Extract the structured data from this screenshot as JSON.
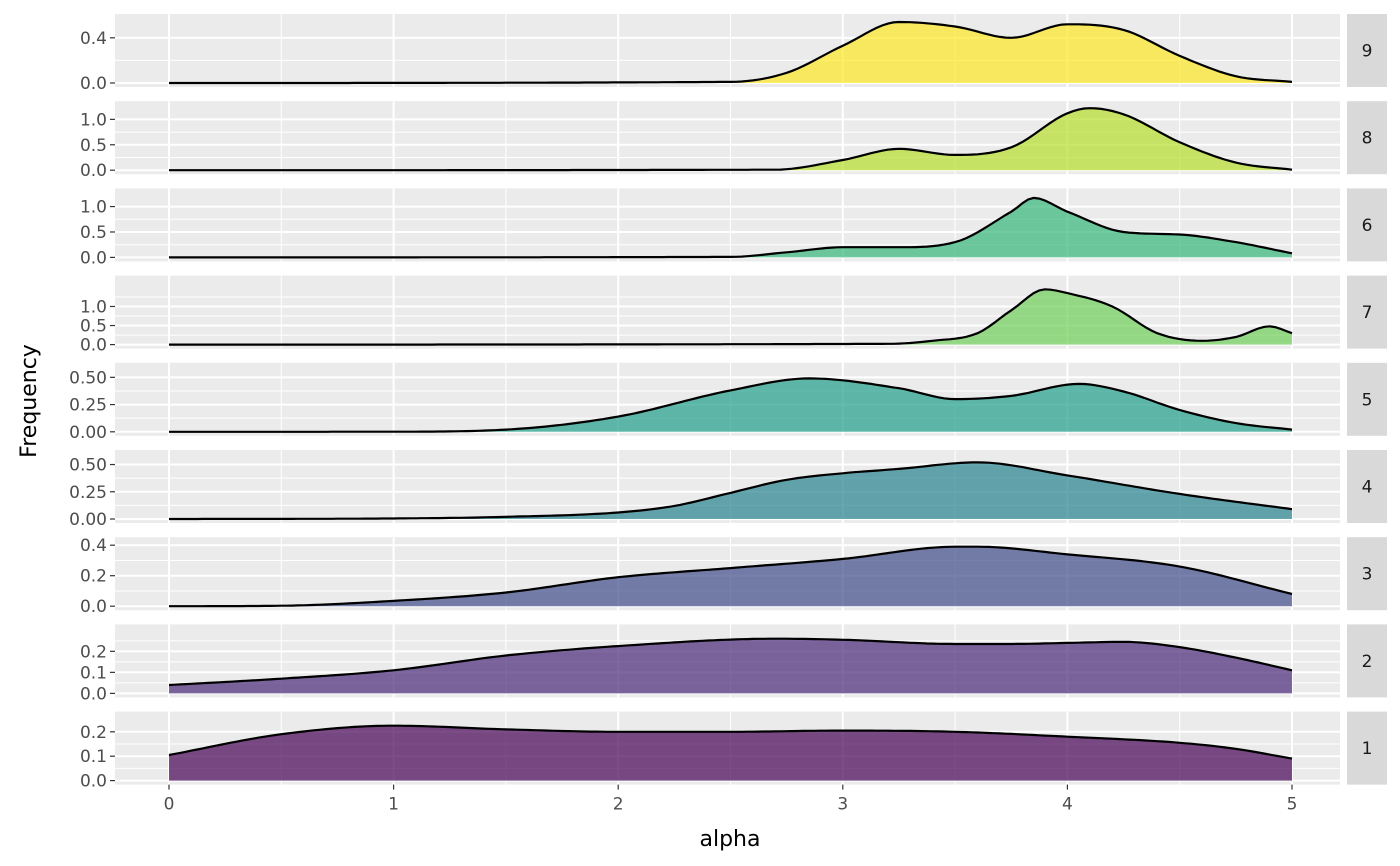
{
  "chart_data": {
    "type": "area",
    "layout": "faceted density ridges, one panel per group, stacked vertically",
    "xlabel": "alpha",
    "ylabel": "Frequency",
    "xlim": [
      0,
      5
    ],
    "x_ticks": [
      "0",
      "1",
      "2",
      "3",
      "4",
      "5"
    ],
    "grid": true,
    "colors": {
      "panel_background": "#ebebeb",
      "grid": "#ffffff",
      "strip_background": "#d9d9d9",
      "outline": "#000000"
    },
    "panels": [
      {
        "label": "9",
        "color": "#fde725",
        "ylim": [
          0,
          0.54
        ],
        "y_ticks": [
          "0.0",
          "0.4"
        ],
        "x": [
          0,
          2.5,
          2.75,
          3.0,
          3.25,
          3.5,
          3.75,
          4.0,
          4.25,
          4.5,
          4.75,
          5.0
        ],
        "values": [
          0,
          0.01,
          0.09,
          0.33,
          0.54,
          0.5,
          0.4,
          0.52,
          0.47,
          0.24,
          0.06,
          0.01
        ]
      },
      {
        "label": "8",
        "color": "#b5de2b",
        "ylim": [
          0,
          1.2
        ],
        "y_ticks": [
          "0.0",
          "0.5",
          "1.0"
        ],
        "x": [
          0,
          2.7,
          3.0,
          3.25,
          3.5,
          3.75,
          4.0,
          4.1,
          4.25,
          4.5,
          4.75,
          5.0
        ],
        "values": [
          0,
          0.01,
          0.2,
          0.42,
          0.3,
          0.45,
          1.12,
          1.22,
          1.1,
          0.55,
          0.15,
          0.01
        ]
      },
      {
        "label": "6",
        "color": "#35b779",
        "ylim": [
          0,
          1.2
        ],
        "y_ticks": [
          "0.0",
          "0.5",
          "1.0"
        ],
        "x": [
          0,
          2.5,
          2.75,
          3.0,
          3.25,
          3.5,
          3.75,
          3.85,
          4.0,
          4.25,
          4.5,
          4.75,
          5.0
        ],
        "values": [
          0,
          0.01,
          0.1,
          0.2,
          0.2,
          0.3,
          0.9,
          1.17,
          0.9,
          0.5,
          0.45,
          0.3,
          0.08
        ]
      },
      {
        "label": "7",
        "color": "#6ece58",
        "ylim": [
          0,
          1.6
        ],
        "y_ticks": [
          "0.0",
          "0.5",
          "1.0"
        ],
        "x": [
          0,
          3.2,
          3.4,
          3.6,
          3.75,
          3.9,
          4.0,
          4.2,
          4.4,
          4.6,
          4.75,
          4.9,
          5.0
        ],
        "values": [
          0,
          0.02,
          0.1,
          0.3,
          0.9,
          1.45,
          1.35,
          1.0,
          0.3,
          0.1,
          0.2,
          0.48,
          0.3
        ]
      },
      {
        "label": "5",
        "color": "#1f9e89",
        "ylim": [
          0,
          0.56
        ],
        "y_ticks": [
          "0.00",
          "0.25",
          "0.50"
        ],
        "x": [
          0,
          1.0,
          1.5,
          2.0,
          2.5,
          2.85,
          3.25,
          3.5,
          3.75,
          4.05,
          4.25,
          4.5,
          4.75,
          5.0
        ],
        "values": [
          0,
          0.001,
          0.02,
          0.14,
          0.38,
          0.49,
          0.4,
          0.3,
          0.33,
          0.44,
          0.37,
          0.2,
          0.08,
          0.02
        ]
      },
      {
        "label": "4",
        "color": "#26828e",
        "ylim": [
          0,
          0.56
        ],
        "y_ticks": [
          "0.00",
          "0.25",
          "0.50"
        ],
        "x": [
          0,
          1.0,
          1.5,
          2.0,
          2.25,
          2.5,
          2.75,
          3.0,
          3.25,
          3.6,
          4.0,
          4.5,
          5.0
        ],
        "values": [
          0,
          0.005,
          0.02,
          0.06,
          0.12,
          0.24,
          0.36,
          0.42,
          0.46,
          0.52,
          0.4,
          0.23,
          0.09
        ]
      },
      {
        "label": "3",
        "color": "#3e4a89",
        "ylim": [
          0,
          0.4
        ],
        "y_ticks": [
          "0.0",
          "0.2",
          "0.4"
        ],
        "x": [
          0,
          0.5,
          1.0,
          1.5,
          2.0,
          2.5,
          3.0,
          3.5,
          3.6,
          4.0,
          4.5,
          5.0
        ],
        "values": [
          0,
          0.003,
          0.035,
          0.09,
          0.19,
          0.25,
          0.31,
          0.39,
          0.39,
          0.34,
          0.26,
          0.08
        ]
      },
      {
        "label": "2",
        "color": "#482878",
        "ylim": [
          0,
          0.29
        ],
        "y_ticks": [
          "0.0",
          "0.1",
          "0.2"
        ],
        "x": [
          0,
          0.5,
          1.0,
          1.5,
          2.0,
          2.7,
          3.0,
          3.5,
          3.75,
          4.0,
          4.25,
          4.5,
          4.75,
          5.0
        ],
        "values": [
          0.04,
          0.07,
          0.11,
          0.18,
          0.225,
          0.26,
          0.255,
          0.235,
          0.235,
          0.24,
          0.245,
          0.22,
          0.17,
          0.11
        ]
      },
      {
        "label": "1",
        "color": "#440154",
        "ylim": [
          0,
          0.25
        ],
        "y_ticks": [
          "0.0",
          "0.1",
          "0.2"
        ],
        "x": [
          0,
          0.5,
          1.0,
          1.5,
          2.0,
          2.5,
          3.0,
          3.5,
          4.0,
          4.5,
          4.75,
          5.0
        ],
        "values": [
          0.105,
          0.19,
          0.225,
          0.21,
          0.2,
          0.2,
          0.205,
          0.2,
          0.18,
          0.155,
          0.13,
          0.09
        ]
      }
    ]
  }
}
